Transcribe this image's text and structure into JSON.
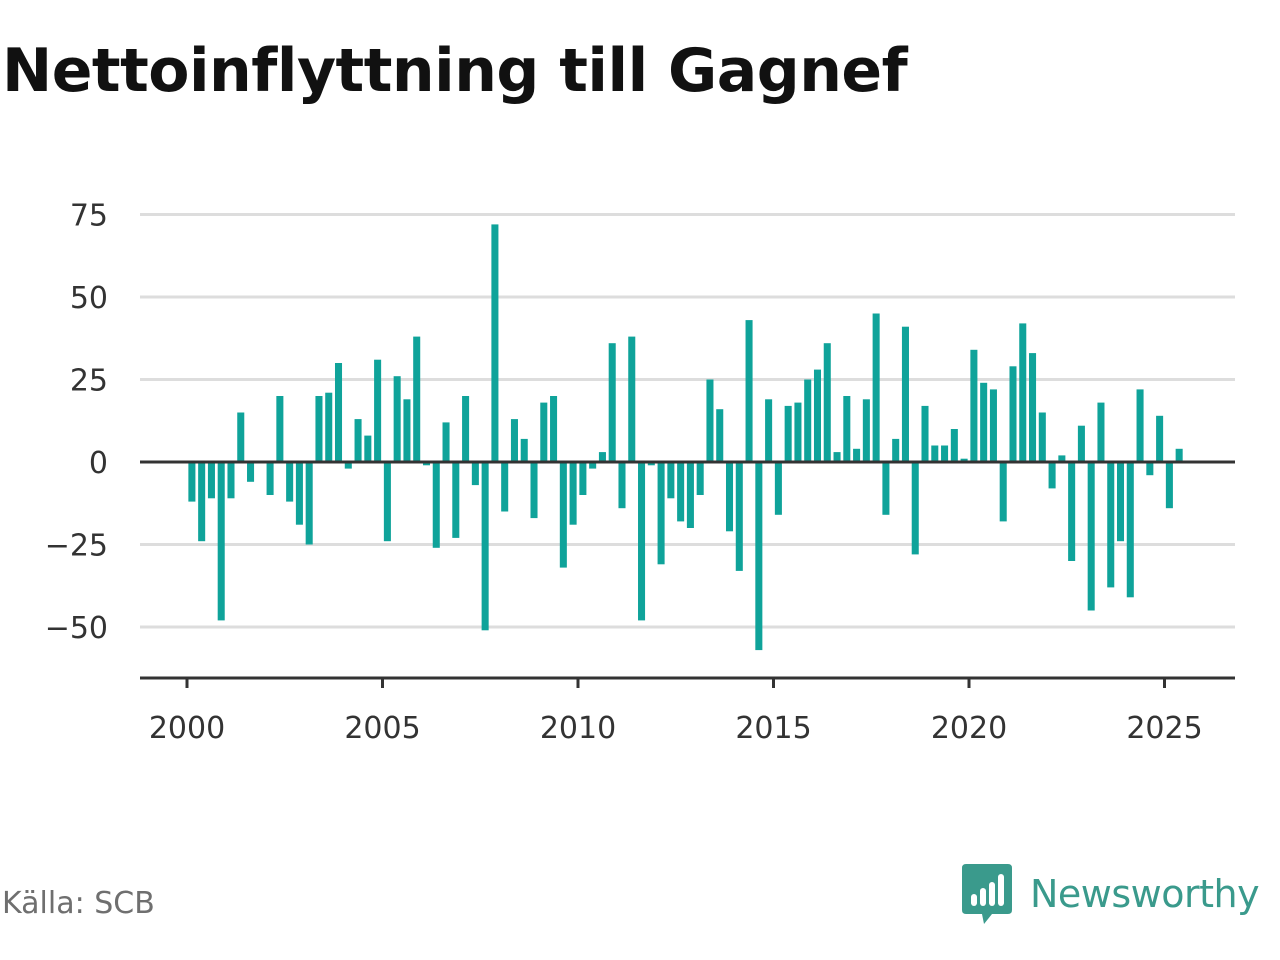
{
  "title": "Nettoinflyttning till Gagnef",
  "source": "Källa: SCB",
  "brand": {
    "name": "Newsworthy",
    "icon": "chart-bubble-icon",
    "color": "#3a9a8c"
  },
  "chart_data": {
    "type": "bar",
    "title": "Nettoinflyttning till Gagnef",
    "xlabel": "",
    "ylabel": "",
    "bar_color": "#0fa39a",
    "grid": true,
    "ylim": [
      -65,
      80
    ],
    "xlim": [
      1998.8,
      2026.8
    ],
    "y_ticks": [
      -50,
      -25,
      0,
      25,
      50,
      75
    ],
    "y_tick_labels": [
      "−50",
      "−25",
      "0",
      "25",
      "50",
      "75"
    ],
    "x_ticks": [
      2000,
      2005,
      2010,
      2015,
      2020,
      2025
    ],
    "x_tick_labels": [
      "2000",
      "2005",
      "2010",
      "2015",
      "2020",
      "2025"
    ],
    "x_start": 2000.125,
    "x_step": 0.25,
    "values": [
      -12,
      -24,
      -11,
      -48,
      -11,
      15,
      -6,
      0,
      -10,
      20,
      -12,
      -19,
      -25,
      20,
      21,
      30,
      -2,
      13,
      8,
      31,
      -24,
      26,
      19,
      38,
      -1,
      -26,
      12,
      -23,
      20,
      -7,
      -51,
      72,
      -15,
      13,
      7,
      -17,
      18,
      20,
      -32,
      -19,
      -10,
      -2,
      3,
      36,
      -14,
      38,
      -48,
      -1,
      -31,
      -11,
      -18,
      -20,
      -10,
      25,
      16,
      -21,
      -33,
      43,
      -57,
      19,
      -16,
      17,
      18,
      25,
      28,
      36,
      3,
      20,
      4,
      19,
      45,
      -16,
      7,
      41,
      -28,
      17,
      5,
      5,
      10,
      1,
      34,
      24,
      22,
      -18,
      29,
      42,
      33,
      15,
      -8,
      2,
      -30,
      11,
      -45,
      18,
      -38,
      -24,
      -41,
      22,
      -4,
      14,
      -14,
      4
    ]
  }
}
